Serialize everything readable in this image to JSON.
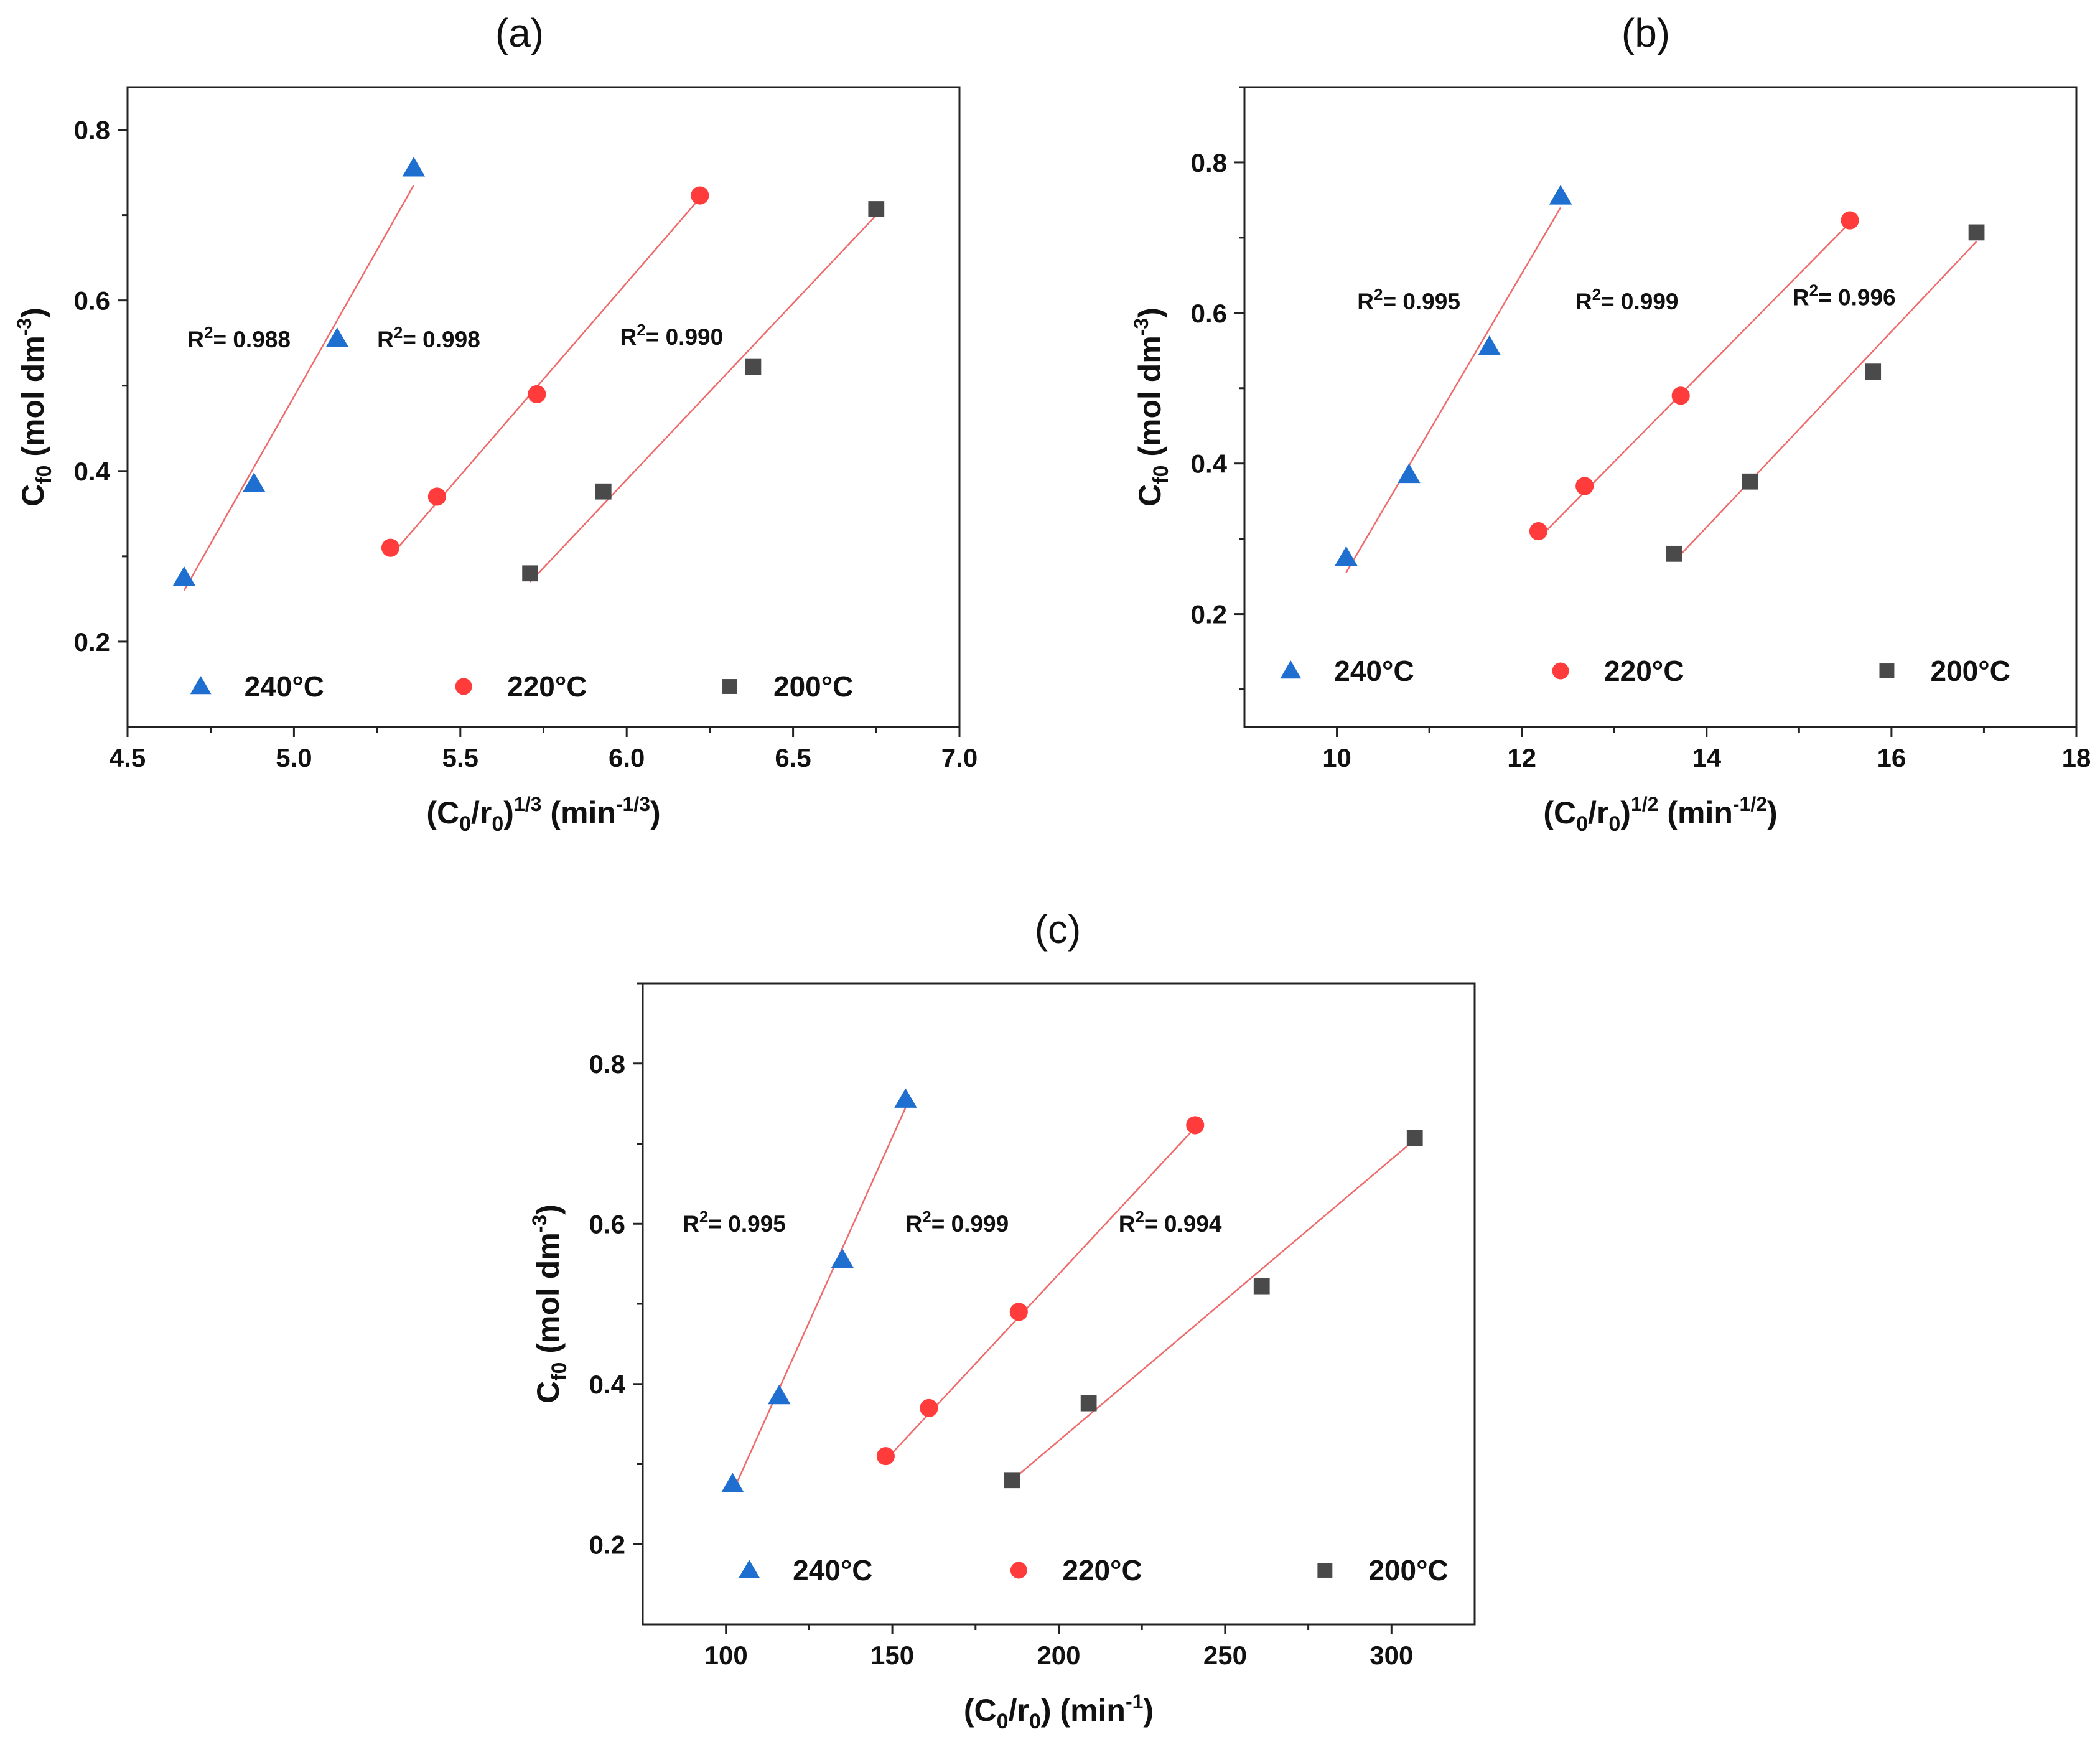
{
  "colors": {
    "s240": "#1f6fd0",
    "s220": "#ff3b3b",
    "s200": "#4a4a4a",
    "fit": "#ef6a6a"
  },
  "chart_data": [
    {
      "type": "scatter",
      "panel": "(a)",
      "ylabel": {
        "main": "C",
        "sub": "f0",
        "rest": " (mol dm",
        "sup": "-3",
        "close": ")"
      },
      "xlabel": {
        "pre": "(C",
        "sub1": "0",
        "mid": "/r",
        "sub2": "0",
        "post": ")",
        "sup1": "1/3",
        "unit": " (min",
        "sup2": "-1/3",
        "close": ")"
      },
      "xlim": [
        4.5,
        7.0
      ],
      "ylim": [
        0.1,
        0.85
      ],
      "xticks": [
        4.5,
        5.0,
        5.5,
        6.0,
        6.5,
        7.0
      ],
      "xtick_labels": [
        "4.5",
        "5.0",
        "5.5",
        "6.0",
        "6.5",
        "7.0"
      ],
      "yticks": [
        0.2,
        0.4,
        0.6,
        0.8
      ],
      "ytick_labels": [
        "0.2",
        "0.4",
        "0.6",
        "0.8"
      ],
      "series": [
        {
          "name": "240°C",
          "marker": "triangle",
          "x": [
            4.67,
            4.88,
            5.13,
            5.36
          ],
          "y": [
            0.275,
            0.385,
            0.555,
            0.755
          ],
          "fit": [
            [
              4.67,
              0.26
            ],
            [
              5.36,
              0.735
            ]
          ],
          "r2": "0.988"
        },
        {
          "name": "220°C",
          "marker": "circle",
          "x": [
            5.29,
            5.43,
            5.73,
            6.22
          ],
          "y": [
            0.31,
            0.37,
            0.49,
            0.723
          ],
          "fit": [
            [
              5.29,
              0.3
            ],
            [
              6.22,
              0.72
            ]
          ],
          "r2": "0.998"
        },
        {
          "name": "200°C",
          "marker": "square",
          "x": [
            5.71,
            5.93,
            6.38,
            6.75
          ],
          "y": [
            0.28,
            0.376,
            0.522,
            0.707
          ],
          "fit": [
            [
              5.71,
              0.27
            ],
            [
              6.75,
              0.7
            ]
          ],
          "r2": "0.990"
        }
      ],
      "annotations": [
        {
          "text": "= 0.988",
          "x": 4.68,
          "y": 0.545
        },
        {
          "text": "= 0.998",
          "x": 5.25,
          "y": 0.545
        },
        {
          "text": "= 0.990",
          "x": 5.98,
          "y": 0.548
        }
      ],
      "legend": [
        {
          "name": "240°C",
          "x": 4.72
        },
        {
          "name": "220°C",
          "x": 5.51
        },
        {
          "name": "200°C",
          "x": 6.31
        }
      ]
    },
    {
      "type": "scatter",
      "panel": "(b)",
      "ylabel": {
        "main": "C",
        "sub": "f0",
        "rest": " (mol dm",
        "sup": "-3",
        "close": ")"
      },
      "xlabel": {
        "pre": "(C",
        "sub1": "0",
        "mid": "/r",
        "sub2": "0",
        "post": ")",
        "sup1": "1/2",
        "unit": " (min",
        "sup2": "-1/2",
        "close": ")"
      },
      "xlim": [
        9.0,
        18.0
      ],
      "ylim": [
        0.05,
        0.9
      ],
      "xticks": [
        10,
        12,
        14,
        16,
        18
      ],
      "xtick_labels": [
        "10",
        "12",
        "14",
        "16",
        "18"
      ],
      "yticks": [
        0.2,
        0.4,
        0.6,
        0.8
      ],
      "ytick_labels": [
        "0.2",
        "0.4",
        "0.6",
        "0.8"
      ],
      "series": [
        {
          "name": "240°C",
          "marker": "triangle",
          "x": [
            10.1,
            10.78,
            11.65,
            12.42
          ],
          "y": [
            0.275,
            0.385,
            0.555,
            0.755
          ],
          "fit": [
            [
              10.1,
              0.255
            ],
            [
              12.42,
              0.74
            ]
          ],
          "r2": "0.995"
        },
        {
          "name": "220°C",
          "marker": "circle",
          "x": [
            12.18,
            12.68,
            13.72,
            15.55
          ],
          "y": [
            0.31,
            0.37,
            0.49,
            0.723
          ],
          "fit": [
            [
              12.18,
              0.3
            ],
            [
              15.55,
              0.72
            ]
          ],
          "r2": "0.999"
        },
        {
          "name": "200°C",
          "marker": "square",
          "x": [
            13.65,
            14.47,
            15.8,
            16.92
          ],
          "y": [
            0.28,
            0.376,
            0.522,
            0.707
          ],
          "fit": [
            [
              13.65,
              0.27
            ],
            [
              16.92,
              0.695
            ]
          ],
          "r2": "0.996"
        }
      ],
      "annotations": [
        {
          "text": "= 0.995",
          "x": 10.22,
          "y": 0.605
        },
        {
          "text": "= 0.999",
          "x": 12.58,
          "y": 0.605
        },
        {
          "text": "= 0.996",
          "x": 14.93,
          "y": 0.61
        }
      ],
      "legend": [
        {
          "name": "240°C",
          "x": 9.5
        },
        {
          "name": "220°C",
          "x": 12.42
        },
        {
          "name": "200°C",
          "x": 15.95
        }
      ]
    },
    {
      "type": "scatter",
      "panel": "(c)",
      "ylabel": {
        "main": "C",
        "sub": "f0",
        "rest": " (mol dm",
        "sup": "-3",
        "close": ")"
      },
      "xlabel": {
        "pre": "(C",
        "sub1": "0",
        "mid": "/r",
        "sub2": "0",
        "post": ")",
        "sup1": "",
        "unit": " (min",
        "sup2": "-1",
        "close": ")"
      },
      "xlim": [
        75,
        325
      ],
      "ylim": [
        0.1,
        0.9
      ],
      "xticks": [
        100,
        150,
        200,
        250,
        300
      ],
      "xtick_labels": [
        "100",
        "150",
        "200",
        "250",
        "300"
      ],
      "yticks": [
        0.2,
        0.4,
        0.6,
        0.8
      ],
      "ytick_labels": [
        "0.2",
        "0.4",
        "0.6",
        "0.8"
      ],
      "series": [
        {
          "name": "240°C",
          "marker": "triangle",
          "x": [
            102,
            116,
            135,
            154
          ],
          "y": [
            0.275,
            0.385,
            0.555,
            0.755
          ],
          "fit": [
            [
              102,
              0.265
            ],
            [
              154,
              0.745
            ]
          ],
          "r2": "0.995"
        },
        {
          "name": "220°C",
          "marker": "circle",
          "x": [
            148,
            161,
            188,
            241
          ],
          "y": [
            0.31,
            0.37,
            0.49,
            0.723
          ],
          "fit": [
            [
              148,
              0.305
            ],
            [
              241,
              0.72
            ]
          ],
          "r2": "0.999"
        },
        {
          "name": "200°C",
          "marker": "square",
          "x": [
            186,
            209,
            261,
            307
          ],
          "y": [
            0.28,
            0.376,
            0.522,
            0.707
          ],
          "fit": [
            [
              186,
              0.28
            ],
            [
              307,
              0.705
            ]
          ],
          "r2": "0.994"
        }
      ],
      "annotations": [
        {
          "text": "= 0.995",
          "x": 87,
          "y": 0.59
        },
        {
          "text": "= 0.999",
          "x": 154,
          "y": 0.59
        },
        {
          "text": "= 0.994",
          "x": 218,
          "y": 0.59
        }
      ],
      "legend": [
        {
          "name": "240°C",
          "x": 107
        },
        {
          "name": "220°C",
          "x": 188
        },
        {
          "name": "200°C",
          "x": 280
        }
      ]
    }
  ]
}
